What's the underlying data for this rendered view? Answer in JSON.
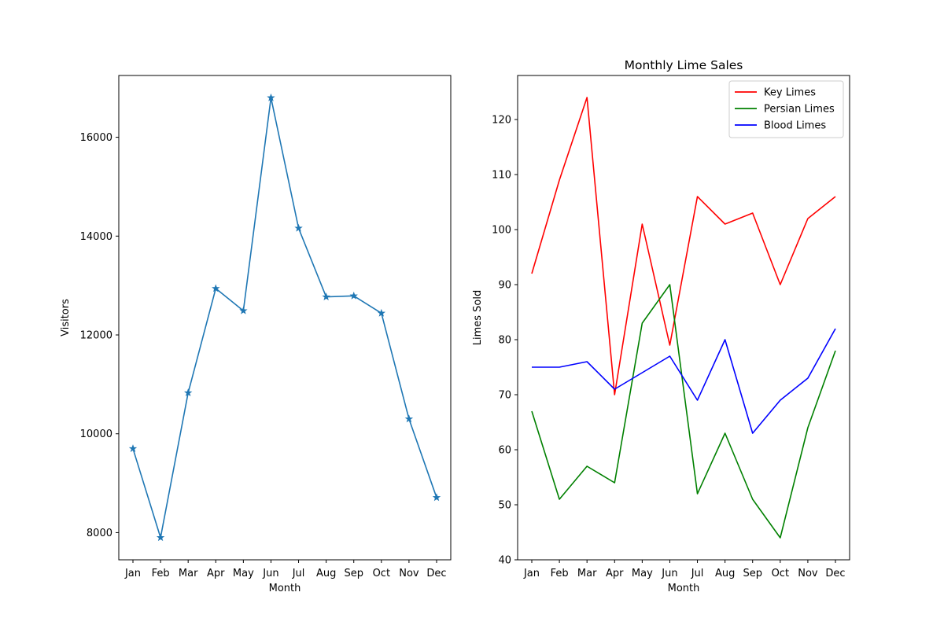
{
  "chart_data": [
    {
      "type": "line",
      "title": "",
      "xlabel": "Month",
      "ylabel": "Visitors",
      "categories": [
        "Jan",
        "Feb",
        "Mar",
        "Apr",
        "May",
        "Jun",
        "Jul",
        "Aug",
        "Sep",
        "Oct",
        "Nov",
        "Dec"
      ],
      "ylim": [
        7450,
        17250
      ],
      "yticks": [
        8000,
        10000,
        12000,
        14000,
        16000
      ],
      "marker": "star",
      "legend": "none",
      "grid": false,
      "series": [
        {
          "name": "",
          "color": "#1f77b4",
          "values": [
            9700,
            7900,
            10830,
            12940,
            12490,
            16800,
            14160,
            12770,
            12790,
            12440,
            10300,
            8710
          ]
        }
      ]
    },
    {
      "type": "line",
      "title": "Monthly Lime Sales",
      "xlabel": "Month",
      "ylabel": "Limes Sold",
      "categories": [
        "Jan",
        "Feb",
        "Mar",
        "Apr",
        "May",
        "Jun",
        "Jul",
        "Aug",
        "Sep",
        "Oct",
        "Nov",
        "Dec"
      ],
      "ylim": [
        40,
        128
      ],
      "yticks": [
        40,
        50,
        60,
        70,
        80,
        90,
        100,
        110,
        120
      ],
      "legend": "top-right",
      "grid": false,
      "series": [
        {
          "name": "Key Limes",
          "color": "#ff0000",
          "values": [
            92,
            109,
            124,
            70,
            101,
            79,
            106,
            101,
            103,
            90,
            102,
            106
          ]
        },
        {
          "name": "Persian Limes",
          "color": "#008000",
          "values": [
            67,
            51,
            57,
            54,
            83,
            90,
            52,
            63,
            51,
            44,
            64,
            78
          ]
        },
        {
          "name": "Blood Limes",
          "color": "#0000ff",
          "values": [
            75,
            75,
            76,
            71,
            74,
            77,
            69,
            80,
            63,
            69,
            73,
            82
          ]
        }
      ]
    }
  ]
}
